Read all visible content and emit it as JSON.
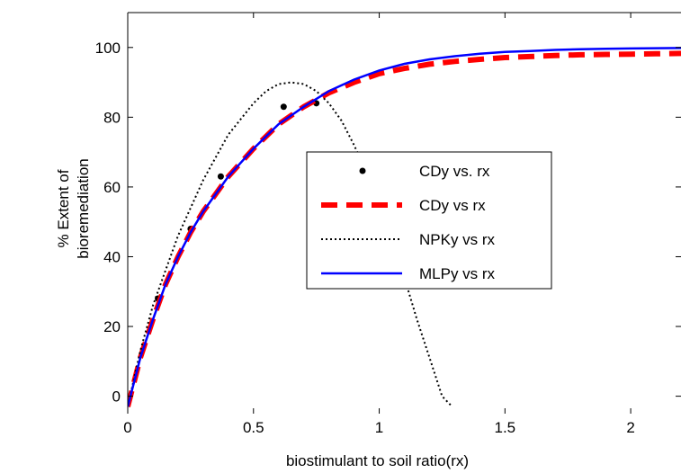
{
  "chart_data": {
    "type": "line",
    "title": "",
    "xlabel": "biostimulant to soil ratio(rx)",
    "ylabel_lines": [
      "% Extent of",
      "bioremediation"
    ],
    "xlim": [
      0,
      2.2
    ],
    "ylim": [
      -5,
      110
    ],
    "xticks": [
      0,
      0.5,
      1,
      1.5,
      2
    ],
    "xtick_labels": [
      "0",
      "0.5",
      "1",
      "1.5",
      "2"
    ],
    "yticks": [
      0,
      20,
      40,
      60,
      80,
      100
    ],
    "ytick_labels": [
      "0",
      "20",
      "40",
      "60",
      "80",
      "100"
    ],
    "grid": false,
    "legend_position": "center-right",
    "series": [
      {
        "name": "CDy vs. rx",
        "style": "points",
        "color": "#000000",
        "x": [
          0,
          0.12,
          0.25,
          0.37,
          0.62,
          0.75
        ],
        "y": [
          -2,
          28,
          48,
          63,
          83,
          84
        ]
      },
      {
        "name": "CDy vs rx",
        "style": "dashed",
        "color": "#ff0000",
        "x": [
          0,
          0.05,
          0.1,
          0.15,
          0.2,
          0.25,
          0.3,
          0.4,
          0.5,
          0.6,
          0.7,
          0.8,
          0.9,
          1.0,
          1.1,
          1.2,
          1.3,
          1.4,
          1.5,
          1.6,
          1.7,
          1.8,
          1.9,
          2.0,
          2.1,
          2.2
        ],
        "y": [
          -3,
          11,
          22,
          32,
          40,
          47,
          53,
          63,
          71,
          78,
          83,
          87,
          90,
          92.5,
          94,
          95.2,
          96,
          96.6,
          97.1,
          97.4,
          97.7,
          97.9,
          98.0,
          98.1,
          98.2,
          98.3
        ]
      },
      {
        "name": "NPKy vs rx",
        "style": "dotted",
        "color": "#000000",
        "x": [
          0,
          0.05,
          0.1,
          0.15,
          0.2,
          0.3,
          0.4,
          0.5,
          0.55,
          0.6,
          0.65,
          0.7,
          0.75,
          0.8,
          0.85,
          0.9,
          0.95,
          1.0,
          1.05,
          1.1,
          1.15,
          1.2,
          1.25,
          1.29
        ],
        "y": [
          -3,
          13,
          26,
          36,
          46,
          62,
          75,
          84,
          87.5,
          89.5,
          90,
          89.5,
          87.5,
          84,
          79,
          72,
          64,
          55,
          45,
          34,
          22,
          11,
          0,
          -3
        ]
      },
      {
        "name": "MLPy vs rx",
        "style": "solid",
        "color": "#0000ff",
        "x": [
          0,
          0.05,
          0.1,
          0.15,
          0.2,
          0.25,
          0.3,
          0.4,
          0.5,
          0.6,
          0.7,
          0.8,
          0.9,
          1.0,
          1.1,
          1.2,
          1.3,
          1.4,
          1.5,
          1.6,
          1.7,
          1.8,
          1.9,
          2.0,
          2.1,
          2.2
        ],
        "y": [
          -3,
          11,
          22,
          32,
          40,
          47,
          53,
          63,
          71,
          78,
          83,
          87.5,
          90.8,
          93.4,
          95.3,
          96.6,
          97.5,
          98.2,
          98.7,
          99.0,
          99.3,
          99.5,
          99.6,
          99.7,
          99.8,
          99.85
        ]
      }
    ]
  }
}
